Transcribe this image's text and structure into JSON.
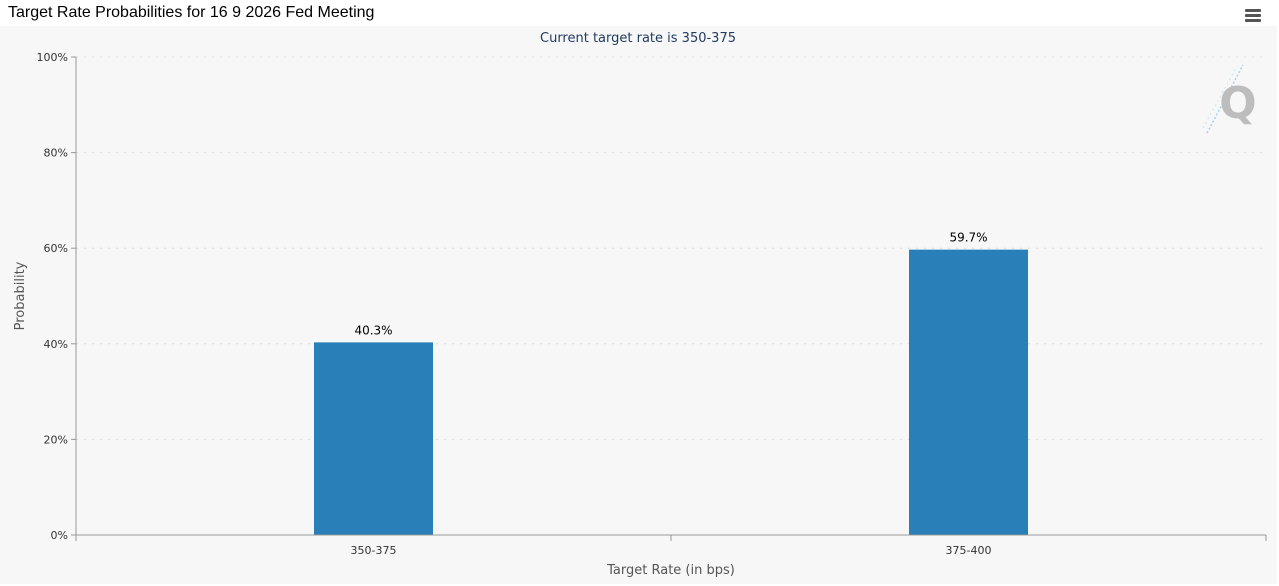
{
  "header": {
    "title": "Target Rate Probabilities for 16 9 2026 Fed Meeting",
    "menu_icon": "hamburger-menu-icon"
  },
  "watermark": {
    "icon": "quikstrike-q-logo-icon",
    "letter": "Q"
  },
  "colors": {
    "bar": "#2980b9",
    "grid": "#d8d8d8",
    "axis": "#999999",
    "subtitle": "#1f3a5f",
    "text": "#333333",
    "background": "#f7f7f7"
  },
  "chart_data": {
    "type": "bar",
    "title": "",
    "subtitle": "Current target rate is 350-375",
    "xlabel": "Target Rate (in bps)",
    "ylabel": "Probability",
    "categories": [
      "350-375",
      "375-400"
    ],
    "values": [
      40.3,
      59.7
    ],
    "data_labels": [
      "40.3%",
      "59.7%"
    ],
    "ylim": [
      0,
      100
    ],
    "yticks": [
      0,
      20,
      40,
      60,
      80,
      100
    ],
    "ytick_labels": [
      "0%",
      "20%",
      "40%",
      "60%",
      "80%",
      "100%"
    ],
    "grid": true,
    "legend": "none"
  }
}
